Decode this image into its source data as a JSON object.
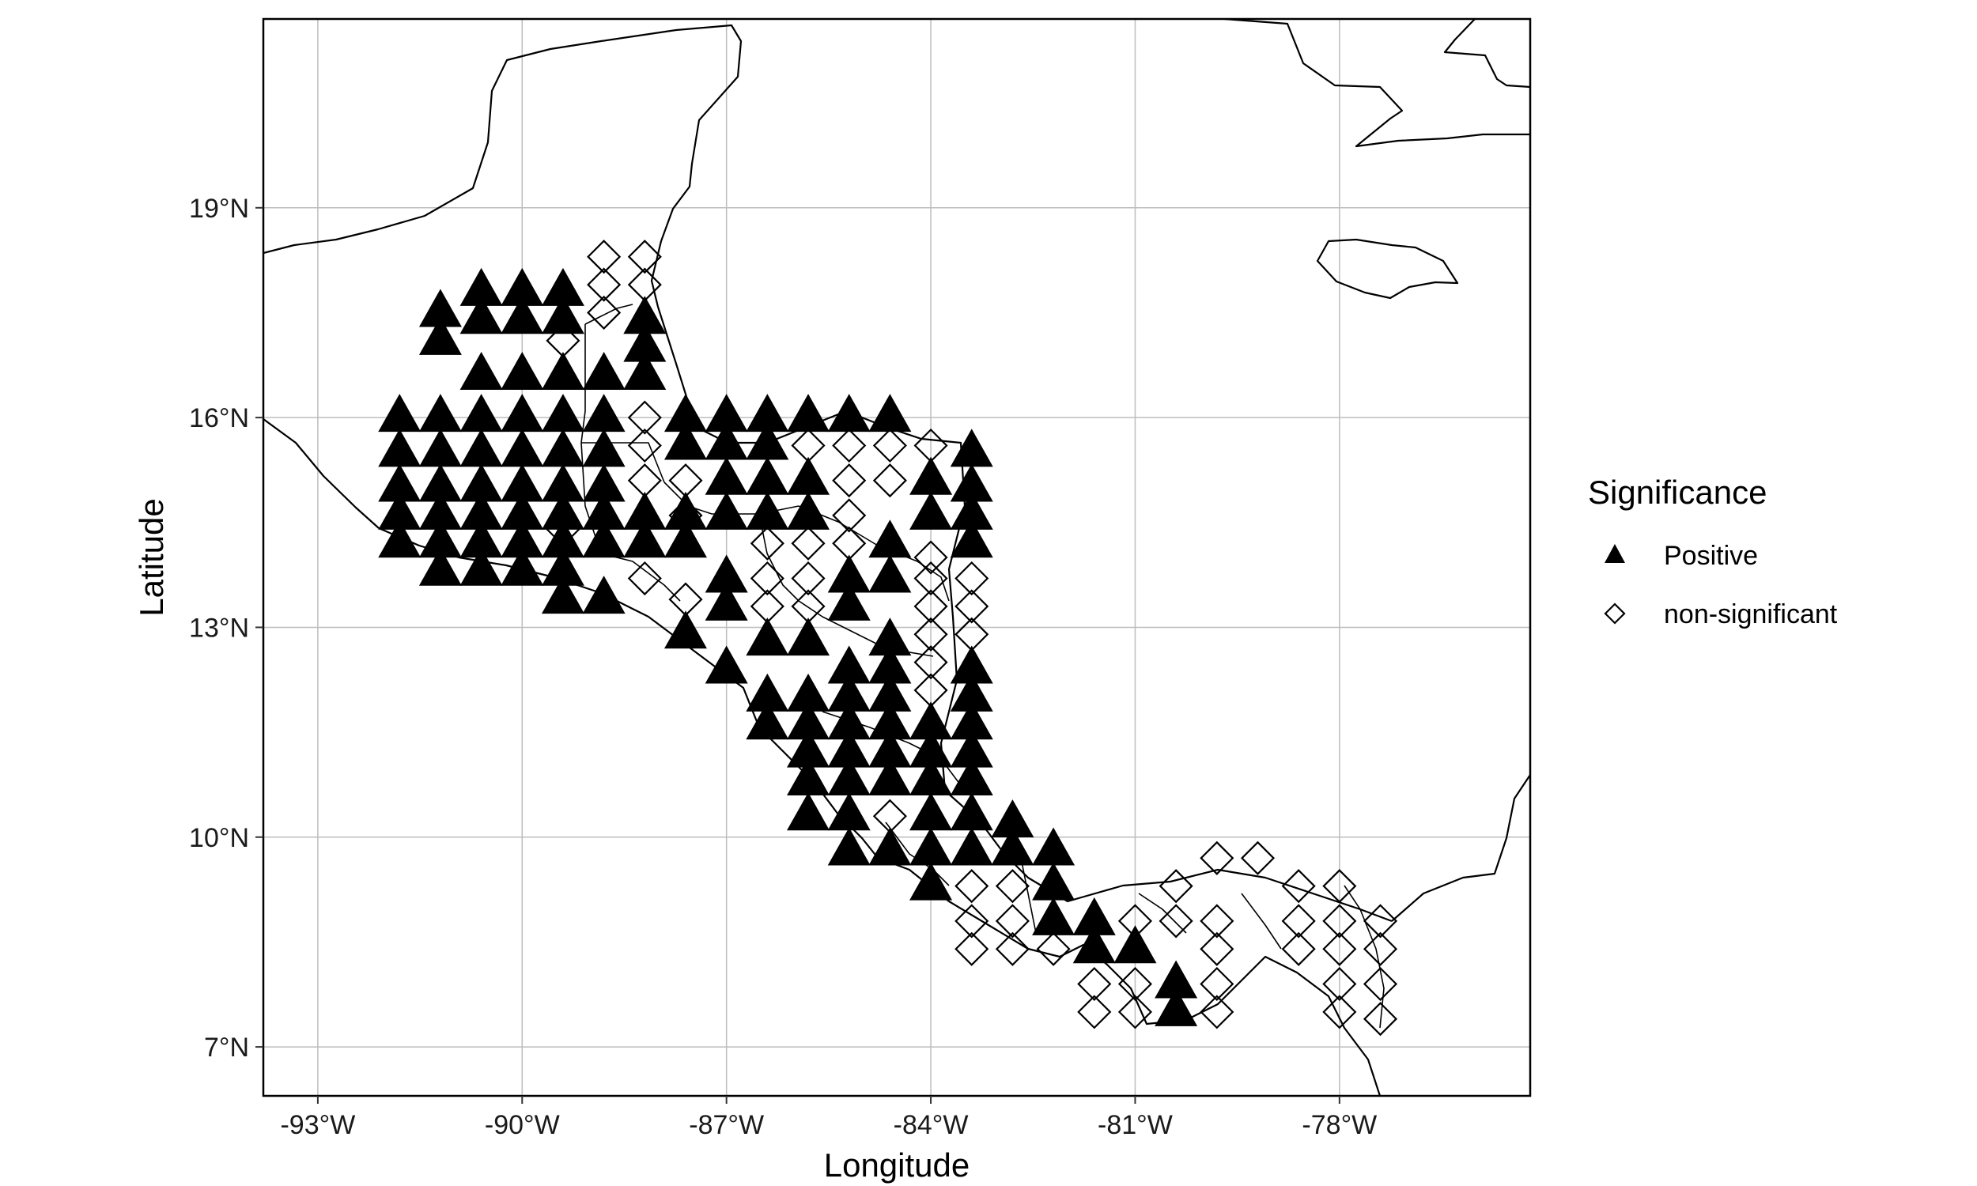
{
  "chart_data": {
    "type": "scatter",
    "title": "",
    "xlabel": "Longitude",
    "ylabel": "Latitude",
    "xlim": [
      -93.8,
      -75.2
    ],
    "ylim": [
      6.3,
      21.7
    ],
    "xticks": [
      {
        "value": -93,
        "label": "-93°W"
      },
      {
        "value": -90,
        "label": "-90°W"
      },
      {
        "value": -87,
        "label": "-87°W"
      },
      {
        "value": -84,
        "label": "-84°W"
      },
      {
        "value": -81,
        "label": "-81°W"
      },
      {
        "value": -78,
        "label": "-78°W"
      }
    ],
    "yticks": [
      {
        "value": 7,
        "label": "7°N"
      },
      {
        "value": 10,
        "label": "10°N"
      },
      {
        "value": 13,
        "label": "13°N"
      },
      {
        "value": 16,
        "label": "16°N"
      },
      {
        "value": 19,
        "label": "19°N"
      }
    ],
    "grid": true,
    "legend_position": "right",
    "legend": {
      "title": "Significance",
      "entries": [
        {
          "key": "positive",
          "label": "Positive",
          "marker": "triangle-filled"
        },
        {
          "key": "nonsig",
          "label": "non-significant",
          "marker": "diamond-open"
        }
      ]
    },
    "series": [
      {
        "name": "Positive",
        "marker": "triangle-filled",
        "color": "#000000",
        "points": [
          [
            -91.2,
            17.5
          ],
          [
            -91.2,
            17.1
          ],
          [
            -90.6,
            17.8
          ],
          [
            -90.6,
            17.4
          ],
          [
            -90.0,
            17.8
          ],
          [
            -90.0,
            17.4
          ],
          [
            -89.4,
            17.8
          ],
          [
            -89.4,
            17.4
          ],
          [
            -90.6,
            16.6
          ],
          [
            -90.0,
            16.6
          ],
          [
            -89.4,
            16.6
          ],
          [
            -88.8,
            16.6
          ],
          [
            -88.2,
            17.4
          ],
          [
            -88.2,
            17.0
          ],
          [
            -88.2,
            16.6
          ],
          [
            -91.8,
            16.0
          ],
          [
            -91.2,
            16.0
          ],
          [
            -90.6,
            16.0
          ],
          [
            -90.0,
            16.0
          ],
          [
            -89.4,
            16.0
          ],
          [
            -88.8,
            16.0
          ],
          [
            -91.8,
            15.5
          ],
          [
            -91.2,
            15.5
          ],
          [
            -90.6,
            15.5
          ],
          [
            -90.0,
            15.5
          ],
          [
            -89.4,
            15.5
          ],
          [
            -88.8,
            15.5
          ],
          [
            -91.8,
            15.0
          ],
          [
            -91.2,
            15.0
          ],
          [
            -90.6,
            15.0
          ],
          [
            -90.0,
            15.0
          ],
          [
            -89.4,
            15.0
          ],
          [
            -88.8,
            15.0
          ],
          [
            -91.8,
            14.6
          ],
          [
            -91.2,
            14.6
          ],
          [
            -90.6,
            14.6
          ],
          [
            -90.0,
            14.6
          ],
          [
            -89.4,
            14.6
          ],
          [
            -88.8,
            14.6
          ],
          [
            -88.2,
            14.6
          ],
          [
            -91.8,
            14.2
          ],
          [
            -91.2,
            14.2
          ],
          [
            -90.6,
            14.2
          ],
          [
            -90.0,
            14.2
          ],
          [
            -89.4,
            14.2
          ],
          [
            -88.8,
            14.2
          ],
          [
            -88.2,
            14.2
          ],
          [
            -87.6,
            14.2
          ],
          [
            -91.2,
            13.8
          ],
          [
            -90.6,
            13.8
          ],
          [
            -90.0,
            13.8
          ],
          [
            -89.4,
            13.8
          ],
          [
            -89.4,
            13.4
          ],
          [
            -88.8,
            13.4
          ],
          [
            -87.6,
            16.0
          ],
          [
            -87.0,
            16.0
          ],
          [
            -86.4,
            16.0
          ],
          [
            -85.8,
            16.0
          ],
          [
            -85.2,
            16.0
          ],
          [
            -84.6,
            16.0
          ],
          [
            -87.6,
            15.6
          ],
          [
            -87.0,
            15.6
          ],
          [
            -86.4,
            15.6
          ],
          [
            -87.0,
            15.1
          ],
          [
            -86.4,
            15.1
          ],
          [
            -85.8,
            15.1
          ],
          [
            -87.6,
            14.6
          ],
          [
            -87.0,
            14.6
          ],
          [
            -86.4,
            14.6
          ],
          [
            -85.8,
            14.6
          ],
          [
            -84.0,
            15.1
          ],
          [
            -83.4,
            15.5
          ],
          [
            -83.4,
            15.0
          ],
          [
            -84.0,
            14.6
          ],
          [
            -83.4,
            14.6
          ],
          [
            -83.4,
            14.2
          ],
          [
            -84.6,
            14.2
          ],
          [
            -87.0,
            13.7
          ],
          [
            -87.0,
            13.3
          ],
          [
            -87.6,
            12.9
          ],
          [
            -87.0,
            12.4
          ],
          [
            -86.4,
            12.8
          ],
          [
            -85.8,
            12.8
          ],
          [
            -85.2,
            13.7
          ],
          [
            -85.2,
            13.3
          ],
          [
            -84.6,
            13.7
          ],
          [
            -84.6,
            12.8
          ],
          [
            -85.2,
            12.4
          ],
          [
            -84.6,
            12.4
          ],
          [
            -86.4,
            12.0
          ],
          [
            -85.8,
            12.0
          ],
          [
            -85.2,
            12.0
          ],
          [
            -84.6,
            12.0
          ],
          [
            -86.4,
            11.6
          ],
          [
            -85.8,
            11.6
          ],
          [
            -85.2,
            11.6
          ],
          [
            -84.6,
            11.6
          ],
          [
            -84.0,
            11.6
          ],
          [
            -83.4,
            12.4
          ],
          [
            -83.4,
            12.0
          ],
          [
            -83.4,
            11.6
          ],
          [
            -85.8,
            11.2
          ],
          [
            -85.2,
            11.2
          ],
          [
            -84.6,
            11.2
          ],
          [
            -84.0,
            11.2
          ],
          [
            -83.4,
            11.2
          ],
          [
            -85.8,
            10.8
          ],
          [
            -85.2,
            10.8
          ],
          [
            -84.6,
            10.8
          ],
          [
            -84.0,
            10.8
          ],
          [
            -83.4,
            10.8
          ],
          [
            -85.8,
            10.3
          ],
          [
            -85.2,
            10.3
          ],
          [
            -84.0,
            10.3
          ],
          [
            -83.4,
            10.3
          ],
          [
            -82.8,
            10.2
          ],
          [
            -85.2,
            9.8
          ],
          [
            -84.6,
            9.8
          ],
          [
            -84.0,
            9.8
          ],
          [
            -83.4,
            9.8
          ],
          [
            -82.8,
            9.8
          ],
          [
            -82.2,
            9.8
          ],
          [
            -84.0,
            9.3
          ],
          [
            -82.2,
            9.3
          ],
          [
            -82.2,
            8.8
          ],
          [
            -81.6,
            8.8
          ],
          [
            -81.6,
            8.4
          ],
          [
            -81.0,
            8.4
          ],
          [
            -80.4,
            7.9
          ],
          [
            -80.4,
            7.5
          ]
        ]
      },
      {
        "name": "non-significant",
        "marker": "diamond-open",
        "color": "#000000",
        "points": [
          [
            -88.8,
            18.3
          ],
          [
            -88.8,
            17.9
          ],
          [
            -88.8,
            17.5
          ],
          [
            -88.2,
            18.3
          ],
          [
            -88.2,
            17.9
          ],
          [
            -89.4,
            17.1
          ],
          [
            -88.2,
            16.0
          ],
          [
            -88.2,
            15.6
          ],
          [
            -88.2,
            15.1
          ],
          [
            -87.6,
            15.1
          ],
          [
            -87.6,
            14.6
          ],
          [
            -86.4,
            14.2
          ],
          [
            -85.8,
            14.2
          ],
          [
            -86.4,
            13.7
          ],
          [
            -85.8,
            13.7
          ],
          [
            -85.8,
            13.3
          ],
          [
            -86.4,
            13.3
          ],
          [
            -88.2,
            13.7
          ],
          [
            -87.6,
            13.4
          ],
          [
            -89.4,
            14.4
          ],
          [
            -85.8,
            15.6
          ],
          [
            -85.2,
            15.6
          ],
          [
            -84.6,
            15.6
          ],
          [
            -84.0,
            15.6
          ],
          [
            -85.2,
            15.1
          ],
          [
            -84.6,
            15.1
          ],
          [
            -85.2,
            14.6
          ],
          [
            -85.2,
            14.2
          ],
          [
            -84.0,
            14.0
          ],
          [
            -83.4,
            13.7
          ],
          [
            -84.0,
            13.7
          ],
          [
            -84.0,
            13.3
          ],
          [
            -83.4,
            13.3
          ],
          [
            -84.0,
            12.9
          ],
          [
            -83.4,
            12.9
          ],
          [
            -84.0,
            12.5
          ],
          [
            -84.0,
            12.1
          ],
          [
            -84.6,
            10.3
          ],
          [
            -83.4,
            9.3
          ],
          [
            -82.8,
            9.3
          ],
          [
            -83.4,
            8.8
          ],
          [
            -82.8,
            8.8
          ],
          [
            -83.4,
            8.4
          ],
          [
            -82.8,
            8.4
          ],
          [
            -82.2,
            8.4
          ],
          [
            -81.6,
            7.9
          ],
          [
            -81.0,
            7.9
          ],
          [
            -81.0,
            8.8
          ],
          [
            -80.4,
            9.3
          ],
          [
            -79.8,
            9.7
          ],
          [
            -79.2,
            9.7
          ],
          [
            -80.4,
            8.8
          ],
          [
            -79.8,
            8.8
          ],
          [
            -79.8,
            8.4
          ],
          [
            -79.8,
            7.9
          ],
          [
            -79.8,
            7.5
          ],
          [
            -81.6,
            7.5
          ],
          [
            -81.0,
            7.5
          ],
          [
            -78.6,
            9.3
          ],
          [
            -78.6,
            8.8
          ],
          [
            -78.6,
            8.4
          ],
          [
            -78.0,
            9.3
          ],
          [
            -78.0,
            8.8
          ],
          [
            -78.0,
            8.4
          ],
          [
            -78.0,
            7.9
          ],
          [
            -78.0,
            7.5
          ],
          [
            -77.4,
            8.8
          ],
          [
            -77.4,
            8.4
          ],
          [
            -77.4,
            7.9
          ],
          [
            -77.4,
            7.4
          ]
        ]
      }
    ]
  }
}
